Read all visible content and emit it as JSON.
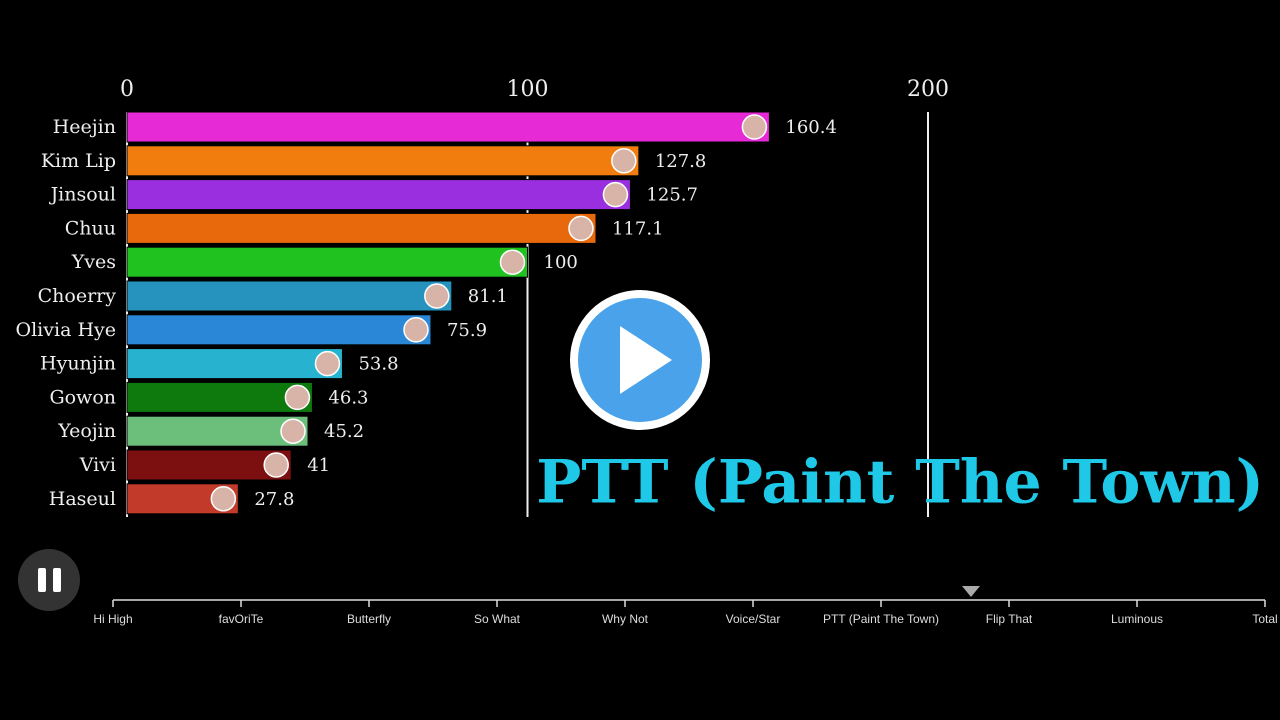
{
  "chart_data": {
    "type": "bar",
    "orientation": "horizontal",
    "categories": [
      "Heejin",
      "Kim Lip",
      "Jinsoul",
      "Chuu",
      "Yves",
      "Choerry",
      "Olivia Hye",
      "Hyunjin",
      "Gowon",
      "Yeojin",
      "Vivi",
      "Haseul"
    ],
    "values": [
      160.4,
      127.8,
      125.7,
      117.1,
      100,
      81.1,
      75.9,
      53.8,
      46.3,
      45.2,
      41,
      27.8
    ],
    "colors": [
      "#e62ad6",
      "#f07d0e",
      "#9a2fe0",
      "#e8680c",
      "#1fc21f",
      "#2693be",
      "#2a86d6",
      "#27b3d0",
      "#0e7a0e",
      "#6bbf7b",
      "#7c1010",
      "#c23a2a"
    ],
    "xlim": [
      0,
      200
    ],
    "xticks": [
      0,
      100,
      200
    ],
    "grid": true,
    "period": "PTT (Paint The Town)"
  },
  "timeline": {
    "labels": [
      "Hi High",
      "favOriTe",
      "Butterfly",
      "So What",
      "Why Not",
      "Voice/Star",
      "PTT (Paint The Town)",
      "Flip That",
      "Luminous",
      "Total"
    ]
  }
}
